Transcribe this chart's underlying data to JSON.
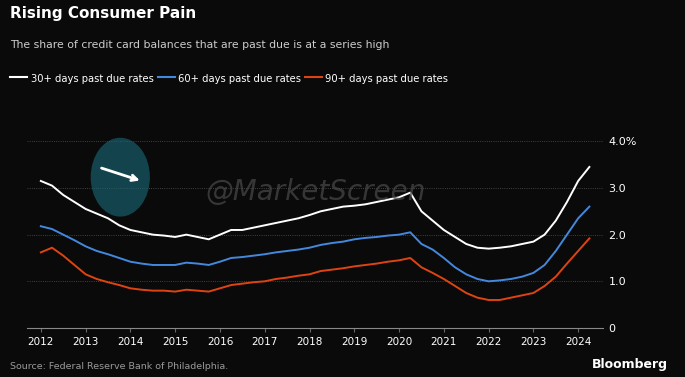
{
  "title": "Rising Consumer Pain",
  "subtitle": "The share of credit card balances that are past due is at a series high",
  "source": "Source: Federal Reserve Bank of Philadelphia.",
  "branding": "Bloomberg",
  "background_color": "#0a0a0a",
  "text_color": "#ffffff",
  "subtitle_color": "#cccccc",
  "legend": [
    {
      "label": "30+ days past due rates",
      "color": "#ffffff"
    },
    {
      "label": "60+ days past due rates",
      "color": "#4488dd"
    },
    {
      "label": "90+ days past due rates",
      "color": "#dd4411"
    }
  ],
  "ylim": [
    0,
    4.2
  ],
  "yticks": [
    0,
    1.0,
    2.0,
    3.0,
    4.0
  ],
  "ytick_labels": [
    "0",
    "1.0",
    "2.0",
    "3.0",
    "4.0%"
  ],
  "years": [
    2012,
    2013,
    2014,
    2015,
    2016,
    2017,
    2018,
    2019,
    2020,
    2021,
    2022,
    2023,
    2024
  ],
  "x_values_30": [
    2012.0,
    2012.25,
    2012.5,
    2012.75,
    2013.0,
    2013.25,
    2013.5,
    2013.75,
    2014.0,
    2014.25,
    2014.5,
    2014.75,
    2015.0,
    2015.25,
    2015.5,
    2015.75,
    2016.0,
    2016.25,
    2016.5,
    2016.75,
    2017.0,
    2017.25,
    2017.5,
    2017.75,
    2018.0,
    2018.25,
    2018.5,
    2018.75,
    2019.0,
    2019.25,
    2019.5,
    2019.75,
    2020.0,
    2020.25,
    2020.5,
    2020.75,
    2021.0,
    2021.25,
    2021.5,
    2021.75,
    2022.0,
    2022.25,
    2022.5,
    2022.75,
    2023.0,
    2023.25,
    2023.5,
    2023.75,
    2024.0,
    2024.25
  ],
  "y_values_30": [
    3.15,
    3.05,
    2.85,
    2.7,
    2.55,
    2.45,
    2.35,
    2.2,
    2.1,
    2.05,
    2.0,
    1.98,
    1.95,
    2.0,
    1.95,
    1.9,
    2.0,
    2.1,
    2.1,
    2.15,
    2.2,
    2.25,
    2.3,
    2.35,
    2.42,
    2.5,
    2.55,
    2.6,
    2.62,
    2.65,
    2.7,
    2.75,
    2.8,
    2.9,
    2.5,
    2.3,
    2.1,
    1.95,
    1.8,
    1.72,
    1.7,
    1.72,
    1.75,
    1.8,
    1.85,
    2.0,
    2.3,
    2.7,
    3.15,
    3.45
  ],
  "x_values_60": [
    2012.0,
    2012.25,
    2012.5,
    2012.75,
    2013.0,
    2013.25,
    2013.5,
    2013.75,
    2014.0,
    2014.25,
    2014.5,
    2014.75,
    2015.0,
    2015.25,
    2015.5,
    2015.75,
    2016.0,
    2016.25,
    2016.5,
    2016.75,
    2017.0,
    2017.25,
    2017.5,
    2017.75,
    2018.0,
    2018.25,
    2018.5,
    2018.75,
    2019.0,
    2019.25,
    2019.5,
    2019.75,
    2020.0,
    2020.25,
    2020.5,
    2020.75,
    2021.0,
    2021.25,
    2021.5,
    2021.75,
    2022.0,
    2022.25,
    2022.5,
    2022.75,
    2023.0,
    2023.25,
    2023.5,
    2023.75,
    2024.0,
    2024.25
  ],
  "y_values_60": [
    2.18,
    2.12,
    2.0,
    1.88,
    1.75,
    1.65,
    1.58,
    1.5,
    1.42,
    1.38,
    1.35,
    1.35,
    1.35,
    1.4,
    1.38,
    1.35,
    1.42,
    1.5,
    1.52,
    1.55,
    1.58,
    1.62,
    1.65,
    1.68,
    1.72,
    1.78,
    1.82,
    1.85,
    1.9,
    1.93,
    1.95,
    1.98,
    2.0,
    2.05,
    1.8,
    1.68,
    1.5,
    1.3,
    1.15,
    1.05,
    1.0,
    1.02,
    1.05,
    1.1,
    1.18,
    1.35,
    1.65,
    2.0,
    2.35,
    2.6
  ],
  "x_values_90": [
    2012.0,
    2012.25,
    2012.5,
    2012.75,
    2013.0,
    2013.25,
    2013.5,
    2013.75,
    2014.0,
    2014.25,
    2014.5,
    2014.75,
    2015.0,
    2015.25,
    2015.5,
    2015.75,
    2016.0,
    2016.25,
    2016.5,
    2016.75,
    2017.0,
    2017.25,
    2017.5,
    2017.75,
    2018.0,
    2018.25,
    2018.5,
    2018.75,
    2019.0,
    2019.25,
    2019.5,
    2019.75,
    2020.0,
    2020.25,
    2020.5,
    2020.75,
    2021.0,
    2021.25,
    2021.5,
    2021.75,
    2022.0,
    2022.25,
    2022.5,
    2022.75,
    2023.0,
    2023.25,
    2023.5,
    2023.75,
    2024.0,
    2024.25
  ],
  "y_values_90": [
    1.62,
    1.72,
    1.55,
    1.35,
    1.15,
    1.05,
    0.98,
    0.92,
    0.85,
    0.82,
    0.8,
    0.8,
    0.78,
    0.82,
    0.8,
    0.78,
    0.85,
    0.92,
    0.95,
    0.98,
    1.0,
    1.05,
    1.08,
    1.12,
    1.15,
    1.22,
    1.25,
    1.28,
    1.32,
    1.35,
    1.38,
    1.42,
    1.45,
    1.5,
    1.3,
    1.18,
    1.05,
    0.9,
    0.75,
    0.65,
    0.6,
    0.6,
    0.65,
    0.7,
    0.75,
    0.9,
    1.1,
    1.38,
    1.65,
    1.92
  ]
}
